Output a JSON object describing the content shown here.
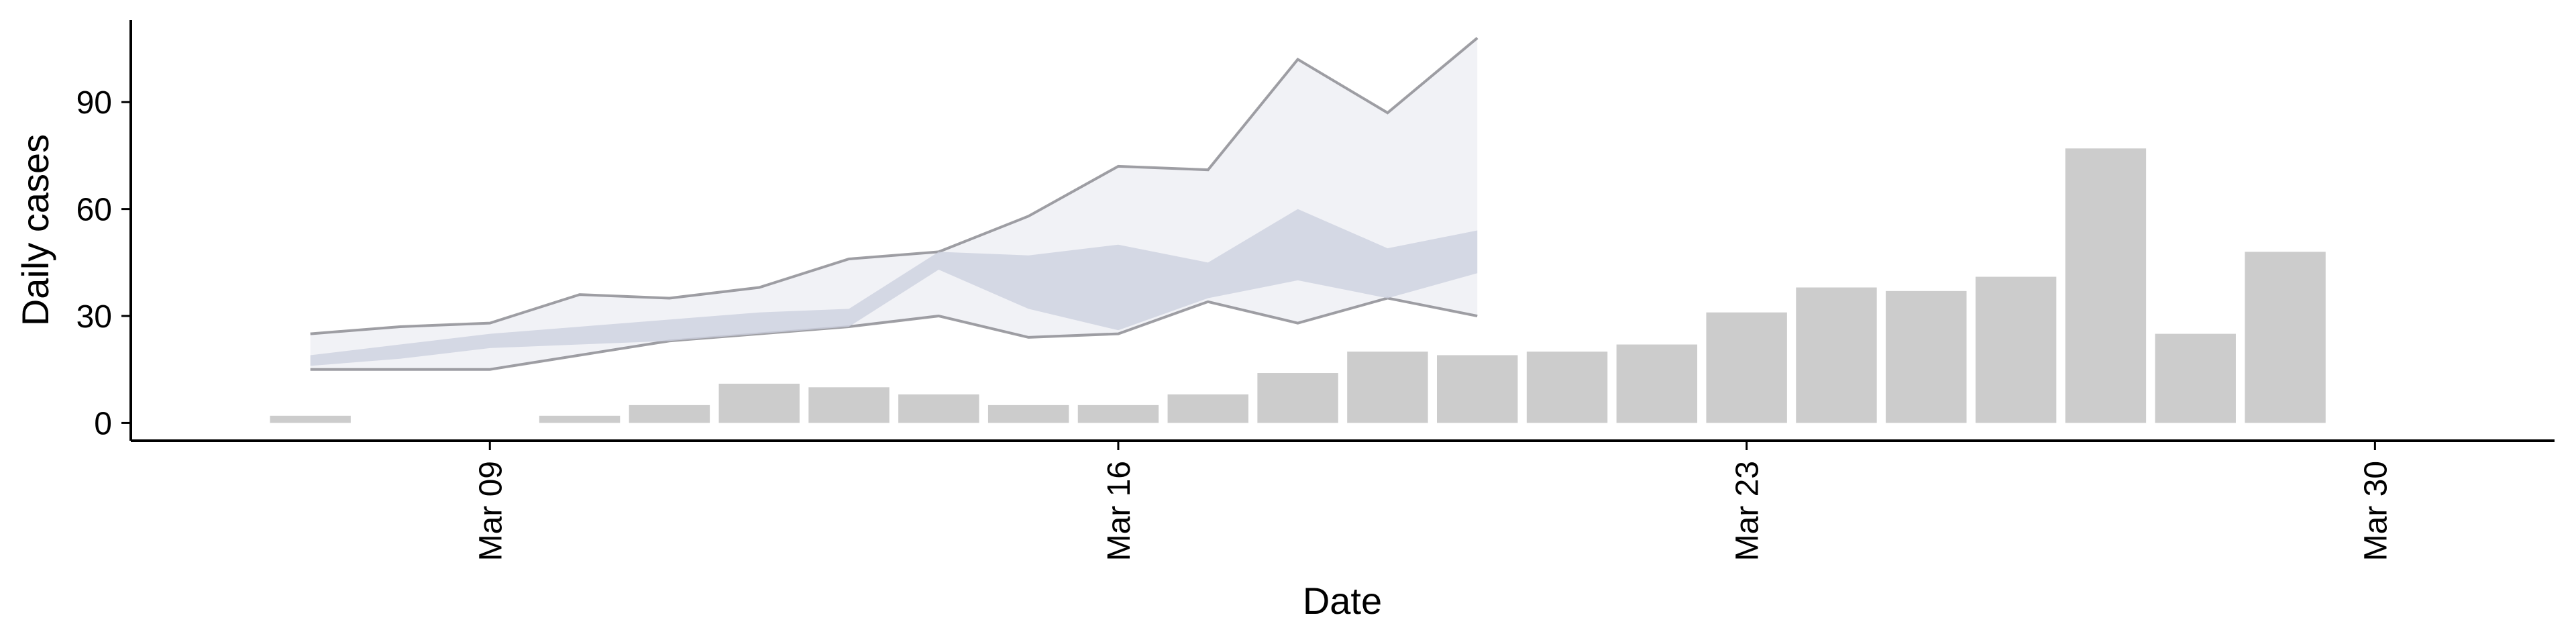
{
  "chart_data": {
    "type": "bar",
    "title": "",
    "xlabel": "Date",
    "ylabel": "Daily cases",
    "ylim": [
      -5,
      113
    ],
    "xlim": [
      "2020-03-05",
      "2020-04-01"
    ],
    "grid": false,
    "legend": "none",
    "x_ticks": [
      {
        "date": "2020-03-09",
        "label": "Mar 09"
      },
      {
        "date": "2020-03-16",
        "label": "Mar 16"
      },
      {
        "date": "2020-03-23",
        "label": "Mar 23"
      },
      {
        "date": "2020-03-30",
        "label": "Mar 30"
      }
    ],
    "y_ticks": [
      0,
      30,
      60,
      90
    ],
    "bars": {
      "color": "#cccccc",
      "dates": [
        "2020-03-07",
        "2020-03-08",
        "2020-03-09",
        "2020-03-10",
        "2020-03-11",
        "2020-03-12",
        "2020-03-13",
        "2020-03-14",
        "2020-03-15",
        "2020-03-16",
        "2020-03-17",
        "2020-03-18",
        "2020-03-19",
        "2020-03-20",
        "2020-03-21",
        "2020-03-22",
        "2020-03-23",
        "2020-03-24",
        "2020-03-25",
        "2020-03-26",
        "2020-03-27",
        "2020-03-28",
        "2020-03-29",
        "2020-03-30"
      ],
      "values": [
        2,
        0,
        0,
        2,
        5,
        11,
        10,
        8,
        5,
        5,
        8,
        14,
        20,
        19,
        20,
        22,
        31,
        38,
        37,
        41,
        77,
        25,
        48,
        0
      ]
    },
    "outer_band": {
      "fill": "#eef0f5",
      "stroke": "#7f7f86",
      "dates": [
        "2020-03-07",
        "2020-03-08",
        "2020-03-09",
        "2020-03-10",
        "2020-03-11",
        "2020-03-12",
        "2020-03-13",
        "2020-03-14",
        "2020-03-15",
        "2020-03-16",
        "2020-03-17",
        "2020-03-18",
        "2020-03-19",
        "2020-03-20",
        "2020-03-21"
      ],
      "upper": [
        25,
        27,
        28,
        36,
        35,
        38,
        46,
        48,
        58,
        72,
        71,
        102,
        87,
        108,
        null
      ],
      "lower": [
        15,
        15,
        15,
        19,
        23,
        25,
        27,
        30,
        24,
        25,
        34,
        28,
        35,
        30,
        null
      ]
    },
    "inner_band": {
      "fill": "#cdd1e0",
      "dates": [
        "2020-03-07",
        "2020-03-08",
        "2020-03-09",
        "2020-03-10",
        "2020-03-11",
        "2020-03-12",
        "2020-03-13",
        "2020-03-14",
        "2020-03-15",
        "2020-03-16",
        "2020-03-17",
        "2020-03-18",
        "2020-03-19",
        "2020-03-20"
      ],
      "upper": [
        19,
        22,
        25,
        27,
        29,
        31,
        32,
        48,
        47,
        50,
        45,
        60,
        49,
        54
      ],
      "lower": [
        16,
        18,
        21,
        22,
        23,
        25,
        27,
        43,
        32,
        26,
        35,
        40,
        35,
        42
      ]
    }
  }
}
